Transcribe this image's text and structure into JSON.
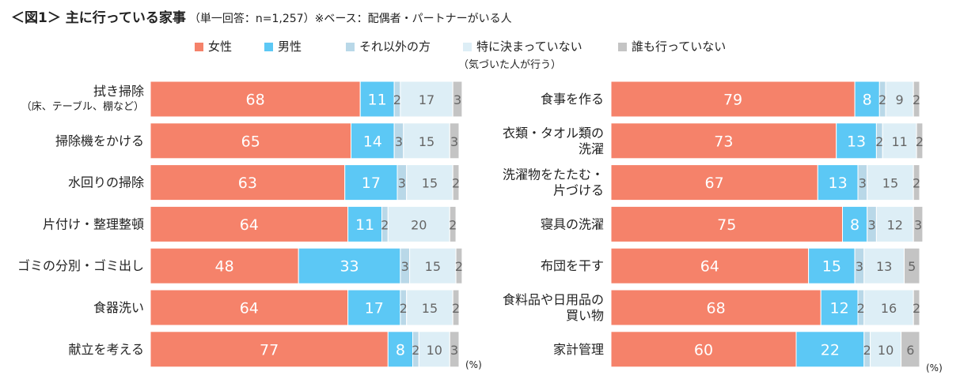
{
  "header": {
    "title": "＜図1＞ 主に行っている家事",
    "subtitle": "（単一回答：n=1,257）※ベース：配偶者・パートナーがいる人"
  },
  "legend": [
    {
      "label": "女性",
      "color": "#f5826a"
    },
    {
      "label": "男性",
      "color": "#5cc8f5"
    },
    {
      "label": "それ以外の方",
      "color": "#b9d8e8"
    },
    {
      "label": "特に決まっていない",
      "note": "（気づいた人が行う）",
      "color": "#ddeef6"
    },
    {
      "label": "誰も行っていない",
      "color": "#c4c4c4"
    }
  ],
  "unit_label": "(%)",
  "chart_data": [
    {
      "type": "bar",
      "orientation": "horizontal",
      "stacked": true,
      "title": "主に行っている家事（左）",
      "categories": [
        [
          "拭き掃除",
          "（床、テーブル、棚など）"
        ],
        [
          "掃除機をかける"
        ],
        [
          "水回りの掃除"
        ],
        [
          "片付け・整理整頓"
        ],
        [
          "ゴミの分別・ゴミ出し"
        ],
        [
          "食器洗い"
        ],
        [
          "献立を考える"
        ]
      ],
      "series": [
        {
          "name": "女性",
          "values": [
            68,
            65,
            63,
            64,
            48,
            64,
            77
          ]
        },
        {
          "name": "男性",
          "values": [
            11,
            14,
            17,
            11,
            33,
            17,
            8
          ]
        },
        {
          "name": "それ以外の方",
          "values": [
            2,
            3,
            3,
            2,
            3,
            2,
            2
          ]
        },
        {
          "name": "特に決まっていない",
          "values": [
            17,
            15,
            15,
            20,
            15,
            15,
            10
          ]
        },
        {
          "name": "誰も行っていない",
          "values": [
            3,
            3,
            2,
            2,
            2,
            2,
            3
          ]
        }
      ],
      "xlim": [
        0,
        100
      ],
      "unit": "%"
    },
    {
      "type": "bar",
      "orientation": "horizontal",
      "stacked": true,
      "title": "主に行っている家事（右）",
      "categories": [
        [
          "食事を作る"
        ],
        [
          "衣類・タオル類の",
          "洗濯"
        ],
        [
          "洗濯物をたたむ・",
          "片づける"
        ],
        [
          "寝具の洗濯"
        ],
        [
          "布団を干す"
        ],
        [
          "食料品や日用品の",
          "買い物"
        ],
        [
          "家計管理"
        ]
      ],
      "series": [
        {
          "name": "女性",
          "values": [
            79,
            73,
            67,
            75,
            64,
            68,
            60
          ]
        },
        {
          "name": "男性",
          "values": [
            8,
            13,
            13,
            8,
            15,
            12,
            22
          ]
        },
        {
          "name": "それ以外の方",
          "values": [
            2,
            2,
            3,
            3,
            3,
            2,
            2
          ]
        },
        {
          "name": "特に決まっていない",
          "values": [
            9,
            11,
            15,
            12,
            13,
            16,
            10
          ]
        },
        {
          "name": "誰も行っていない",
          "values": [
            2,
            2,
            2,
            3,
            5,
            2,
            6
          ]
        }
      ],
      "xlim": [
        0,
        100
      ],
      "unit": "%"
    }
  ]
}
